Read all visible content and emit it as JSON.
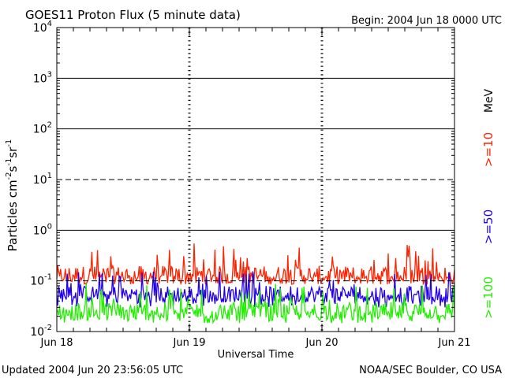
{
  "chart_data": {
    "type": "line",
    "title": "GOES11 Proton Flux (5 minute data)",
    "begin_label": "Begin: 2004 Jun 18 0000 UTC",
    "updated_label": "Updated 2004 Jun 20 23:56:05 UTC",
    "credit": "NOAA/SEC Boulder, CO USA",
    "xlabel": "Universal Time",
    "ylabel_parts": {
      "base": "Particles cm",
      "exp1": "-2",
      "s": "s",
      "exp2": "-1",
      "sr": "sr",
      "exp3": "-1"
    },
    "y_scale": "log",
    "ylim": [
      0.01,
      10000
    ],
    "y_ticks": [
      {
        "base": "10",
        "exp": "-2",
        "value": 0.01
      },
      {
        "base": "10",
        "exp": "-1",
        "value": 0.1
      },
      {
        "base": "10",
        "exp": "0",
        "value": 1
      },
      {
        "base": "10",
        "exp": "1",
        "value": 10
      },
      {
        "base": "10",
        "exp": "2",
        "value": 100
      },
      {
        "base": "10",
        "exp": "3",
        "value": 1000
      },
      {
        "base": "10",
        "exp": "4",
        "value": 10000
      }
    ],
    "x_ticks": [
      "Jun 18",
      "Jun 19",
      "Jun 20",
      "Jun 21"
    ],
    "xlim_days": [
      0,
      3
    ],
    "threshold_lines": [
      {
        "value": 10,
        "style": "dashed"
      },
      {
        "value": 0.1,
        "style": "dashed"
      }
    ],
    "solid_gridlines": [
      1,
      100,
      1000
    ],
    "energy_unit_label": "MeV",
    "series": [
      {
        "name": ">=10",
        "color": "#ff2200",
        "typical": 0.13,
        "min": 0.085,
        "max": 0.55
      },
      {
        "name": ">=50",
        "color": "#2200ee",
        "typical": 0.055,
        "min": 0.03,
        "max": 0.16
      },
      {
        "name": ">=100",
        "color": "#22ee00",
        "typical": 0.025,
        "min": 0.014,
        "max": 0.09
      }
    ]
  }
}
